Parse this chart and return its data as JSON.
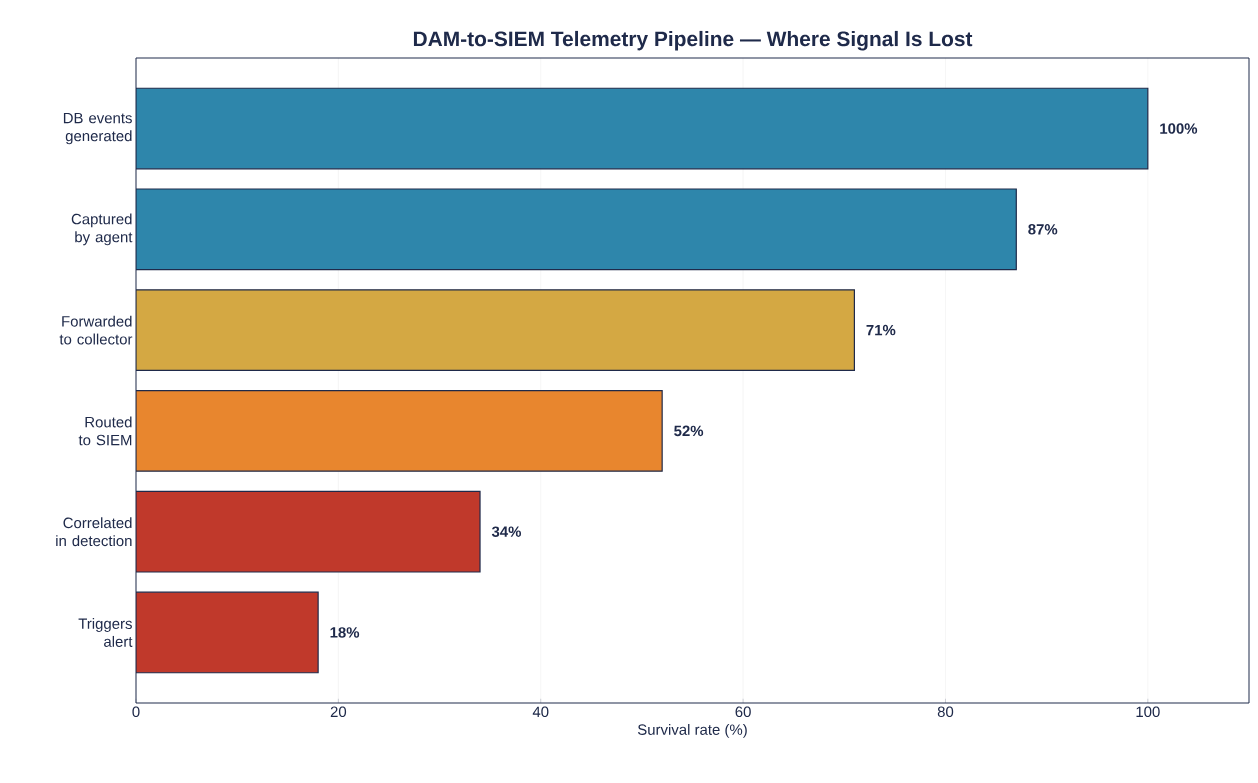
{
  "chart_data": {
    "type": "bar",
    "orientation": "horizontal",
    "title": "DAM-to-SIEM Telemetry Pipeline — Where Signal Is Lost",
    "xlabel": "Survival rate (%)",
    "categories": [
      "DB events generated",
      "Captured by agent",
      "Forwarded to collector",
      "Routed to SIEM",
      "Correlated in detection",
      "Triggers alert"
    ],
    "values": [
      100,
      87,
      71,
      52,
      34,
      18
    ],
    "colors": [
      "#2e86ab",
      "#2e86ab",
      "#d4a843",
      "#e8862e",
      "#c0392b",
      "#c0392b"
    ],
    "value_labels": [
      "100%",
      "87%",
      "71%",
      "52%",
      "34%",
      "18%"
    ],
    "xlim": [
      0,
      110
    ],
    "xticks": [
      0,
      20,
      40,
      60,
      80,
      100
    ],
    "grid": "x"
  }
}
